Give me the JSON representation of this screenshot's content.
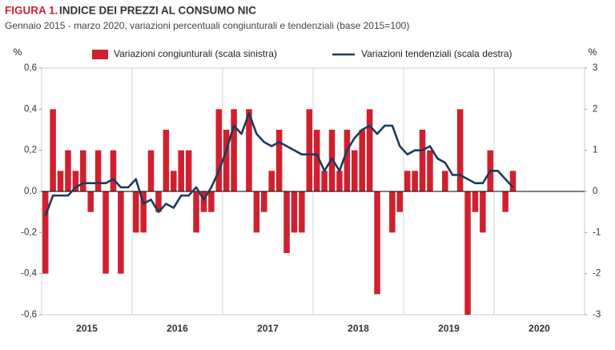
{
  "chart_data": {
    "type": "bar",
    "figure_label": "FIGURA 1.",
    "title": "INDICE DEI PREZZI AL CONSUMO NIC",
    "subtitle": "Gennaio 2015 - marzo 2020, variazioni  percentuali congiunturali  e tendenziali  (base 2015=100)",
    "ylabel": "%",
    "y2label": "%",
    "categories": [
      null,
      null,
      null,
      null,
      null,
      "2015",
      null,
      null,
      null,
      null,
      null,
      null,
      null,
      null,
      null,
      null,
      null,
      "2016",
      null,
      null,
      null,
      null,
      null,
      null,
      null,
      null,
      null,
      null,
      null,
      "2017",
      null,
      null,
      null,
      null,
      null,
      null,
      null,
      null,
      null,
      null,
      null,
      "2018",
      null,
      null,
      null,
      null,
      null,
      null,
      null,
      null,
      null,
      null,
      null,
      "2019",
      null,
      null,
      null,
      null,
      null,
      null,
      null,
      null,
      null,
      null,
      null,
      "2020",
      null,
      null,
      null,
      null,
      null,
      null
    ],
    "series": [
      {
        "name": "Variazioni congiunturali (scala sinistra)",
        "type": "bar",
        "color": "#d0202e",
        "values": [
          -0.4,
          0.4,
          0.1,
          0.2,
          0.1,
          0.2,
          -0.1,
          0.2,
          -0.4,
          0.2,
          -0.4,
          0.0,
          -0.2,
          -0.2,
          0.2,
          -0.1,
          0.3,
          0.1,
          0.2,
          0.2,
          -0.2,
          -0.1,
          -0.1,
          0.4,
          0.3,
          0.4,
          0.0,
          0.4,
          -0.2,
          -0.1,
          0.1,
          0.3,
          -0.3,
          -0.2,
          -0.2,
          0.4,
          0.3,
          0.1,
          0.3,
          0.1,
          0.3,
          0.2,
          0.3,
          0.4,
          -0.5,
          0.0,
          -0.2,
          -0.1,
          0.1,
          0.1,
          0.3,
          0.2,
          0.0,
          0.1,
          0.0,
          0.4,
          -0.6,
          -0.1,
          -0.2,
          0.2,
          0.0,
          -0.1,
          0.1,
          null,
          null,
          null,
          null,
          null,
          null,
          null,
          null,
          null
        ]
      },
      {
        "name": "Variazioni tendenziali (scala destra)",
        "type": "line",
        "axis": "y2",
        "color": "#1b3a5c",
        "values": [
          -0.6,
          -0.1,
          -0.1,
          -0.1,
          0.1,
          0.2,
          0.2,
          0.2,
          0.2,
          0.3,
          0.1,
          0.1,
          0.3,
          -0.3,
          -0.2,
          -0.5,
          -0.3,
          -0.4,
          -0.1,
          -0.1,
          0.1,
          -0.2,
          0.1,
          0.5,
          1.0,
          1.6,
          1.4,
          1.9,
          1.4,
          1.2,
          1.1,
          1.2,
          1.1,
          1.0,
          0.9,
          0.9,
          0.9,
          0.5,
          0.8,
          0.5,
          1.0,
          1.3,
          1.5,
          1.6,
          1.4,
          1.6,
          1.6,
          1.1,
          0.9,
          1.0,
          1.0,
          1.1,
          0.8,
          0.7,
          0.4,
          0.4,
          0.3,
          0.2,
          0.2,
          0.5,
          0.5,
          0.3,
          0.1,
          null,
          null,
          null,
          null,
          null,
          null,
          null,
          null,
          null
        ]
      }
    ],
    "ylim": [
      -0.6,
      0.6
    ],
    "yticks": [
      {
        "value": -0.6,
        "label": "-0,6"
      },
      {
        "value": -0.4,
        "label": "-0,4"
      },
      {
        "value": -0.2,
        "label": "-0,2"
      },
      {
        "value": 0,
        "label": "0,0"
      },
      {
        "value": 0.2,
        "label": "0,2"
      },
      {
        "value": 0.4,
        "label": "0,4"
      },
      {
        "value": 0.6,
        "label": "0,6"
      }
    ],
    "y2lim": [
      -3,
      3
    ],
    "y2ticks": [
      -3,
      -2,
      -1,
      0,
      1,
      2,
      3
    ]
  }
}
